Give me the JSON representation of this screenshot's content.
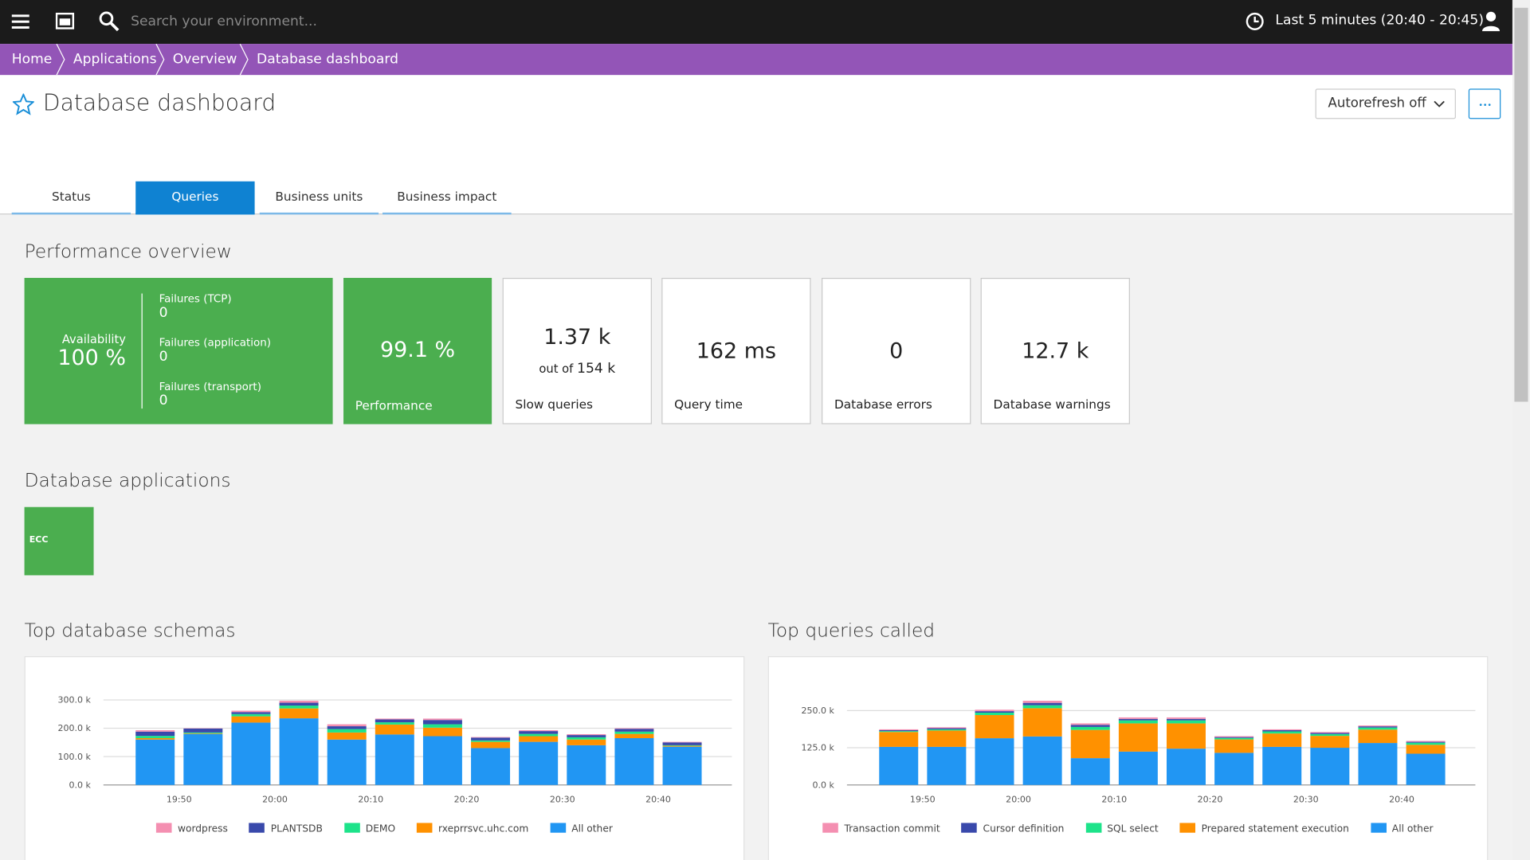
{
  "topbar": {
    "search_placeholder": "Search your environment...",
    "timeframe": "Last 5 minutes (20:40 - 20:45)"
  },
  "breadcrumbs": [
    "Home",
    "Applications",
    "Overview",
    "Database dashboard"
  ],
  "title": "Database dashboard",
  "autorefresh": "Autorefresh off",
  "tabs": [
    "Status",
    "Queries",
    "Business units",
    "Business impact"
  ],
  "active_tab": 1,
  "performance_overview": {
    "heading": "Performance overview",
    "availability": {
      "label": "Availability",
      "value": "100 %"
    },
    "failures": [
      {
        "label": "Failures (TCP)",
        "value": 0
      },
      {
        "label": "Failures (application)",
        "value": 0
      },
      {
        "label": "Failures (transport)",
        "value": 0
      }
    ],
    "tiles": [
      {
        "value": "99.1 %",
        "label": "Performance"
      },
      {
        "value": "1.37 k",
        "sub_prefix": "out of",
        "sub_value": "154 k",
        "label": "Slow queries"
      },
      {
        "value": "162 ms",
        "label": "Query time"
      },
      {
        "value": 0,
        "label": "Database errors"
      },
      {
        "value": "12.7 k",
        "label": "Database warnings"
      }
    ]
  },
  "database_applications": {
    "heading": "Database applications",
    "apps": [
      "ECC"
    ]
  },
  "charts": [
    {
      "type": "bar",
      "stacked": true,
      "title": "Top database schemas",
      "xticks": [
        "19:50",
        "20:00",
        "20:10",
        "20:20",
        "20:30",
        "20:40"
      ],
      "ylim": [
        0,
        320000
      ],
      "yticks": [
        {
          "value": 0,
          "label": "0.0 k"
        },
        {
          "value": 100000,
          "label": "100.0 k"
        },
        {
          "value": 200000,
          "label": "200.0 k"
        },
        {
          "value": 300000,
          "label": "300.0 k"
        }
      ],
      "series": [
        {
          "name": "wordpress",
          "color": "#f48fb1",
          "values": [
            5000,
            1000,
            5000,
            7000,
            7000,
            3000,
            5000,
            2000,
            3000,
            3000,
            2000,
            2000
          ]
        },
        {
          "name": "PLANTSDB",
          "color": "#3949ab",
          "values": [
            15000,
            14000,
            7000,
            10000,
            10000,
            10000,
            15000,
            10000,
            10000,
            8000,
            10000,
            10000
          ]
        },
        {
          "name": "DEMO",
          "color": "#1de38a",
          "values": [
            8000,
            3000,
            8000,
            10000,
            12000,
            8000,
            12000,
            5000,
            8000,
            8000,
            8000,
            2000
          ]
        },
        {
          "name": "rxeprrsvc.uhc.com",
          "color": "#ff9100",
          "values": [
            5000,
            2000,
            22000,
            35000,
            25000,
            35000,
            30000,
            22000,
            20000,
            20000,
            15000,
            3000
          ]
        },
        {
          "name": "All other",
          "color": "#2196f3",
          "values": [
            160000,
            180000,
            220000,
            235000,
            160000,
            178000,
            172000,
            130000,
            152000,
            140000,
            165000,
            135000
          ]
        }
      ]
    },
    {
      "type": "bar",
      "stacked": true,
      "title": "Top queries called",
      "xticks": [
        "19:50",
        "20:00",
        "20:10",
        "20:20",
        "20:30",
        "20:40"
      ],
      "ylim": [
        0,
        305000
      ],
      "yticks": [
        {
          "value": 0,
          "label": "0.0 k"
        },
        {
          "value": 125000,
          "label": "125.0 k"
        },
        {
          "value": 250000,
          "label": "250.0 k"
        }
      ],
      "series": [
        {
          "name": "Transaction commit",
          "color": "#f48fb1",
          "values": [
            3000,
            3000,
            5000,
            7000,
            5000,
            5000,
            5000,
            3000,
            3000,
            3000,
            3000,
            3000
          ]
        },
        {
          "name": "Cursor definition",
          "color": "#3949ab",
          "values": [
            3000,
            4000,
            5000,
            8000,
            7000,
            5000,
            5000,
            3000,
            4000,
            4000,
            4000,
            3000
          ]
        },
        {
          "name": "SQL select",
          "color": "#1de38a",
          "values": [
            3000,
            4000,
            8000,
            10000,
            10000,
            10000,
            10000,
            5000,
            7000,
            6000,
            7000,
            7000
          ]
        },
        {
          "name": "Prepared statement execution",
          "color": "#ff9100",
          "values": [
            50000,
            55000,
            78000,
            95000,
            95000,
            95000,
            85000,
            45000,
            45000,
            40000,
            45000,
            30000
          ]
        },
        {
          "name": "All other",
          "color": "#2196f3",
          "values": [
            128000,
            128000,
            157000,
            163000,
            90000,
            112000,
            122000,
            108000,
            128000,
            125000,
            141000,
            105000
          ]
        }
      ]
    }
  ]
}
